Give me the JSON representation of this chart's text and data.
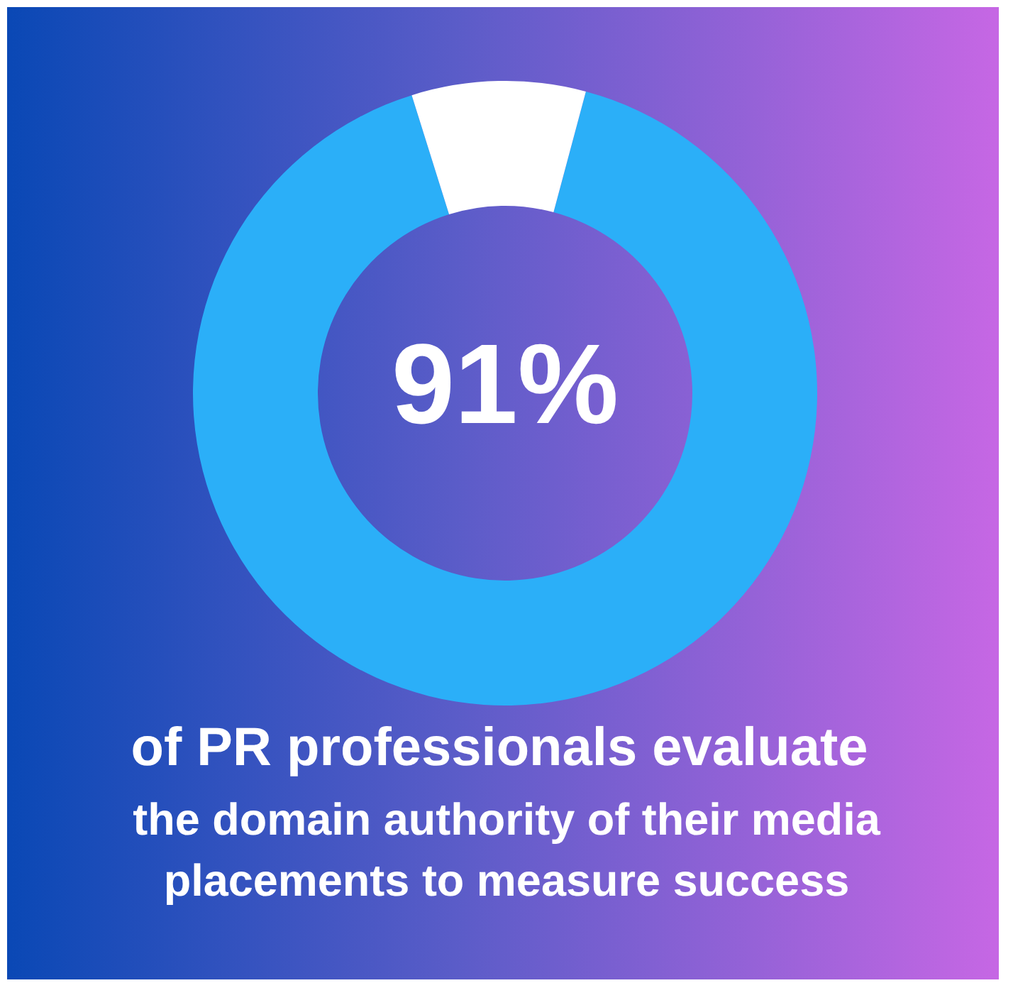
{
  "chart_data": {
    "type": "donut",
    "categories": [
      null,
      null
    ],
    "values": [
      91,
      9
    ],
    "colors": [
      "#2baff8",
      "#ffffff"
    ],
    "title": "91%",
    "subtitle": "of PR professionals evaluate",
    "annotations": [
      "the domain authority of their media placements to measure success"
    ]
  }
}
